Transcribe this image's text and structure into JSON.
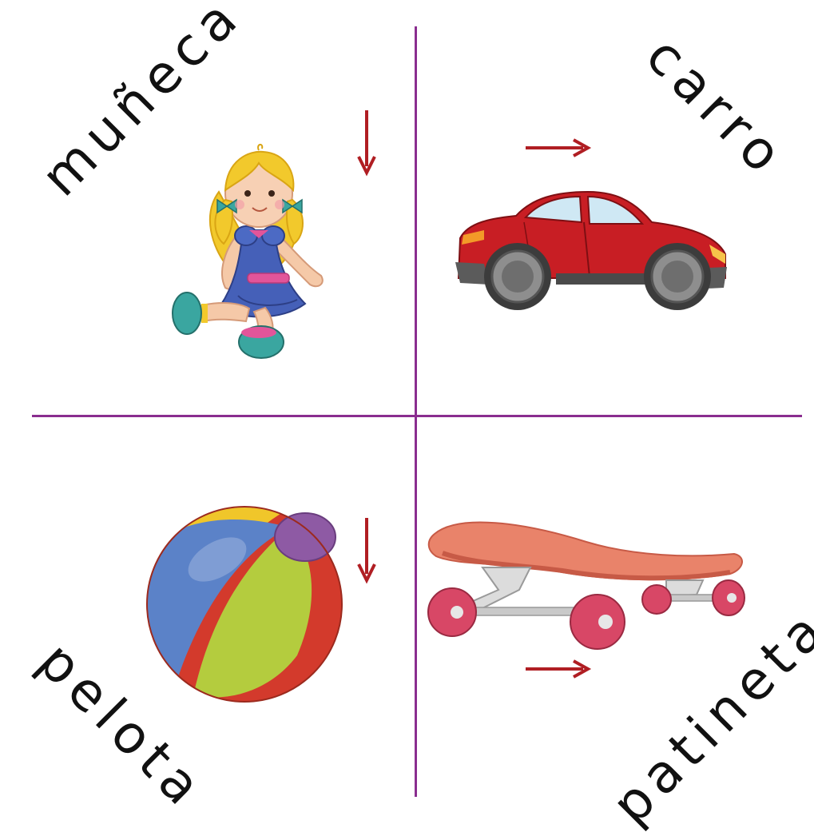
{
  "labels": {
    "top_left": "muñeca",
    "top_right": "carro",
    "bottom_left": "pelota",
    "bottom_right": "patineta"
  },
  "illustrations": {
    "top_left": "doll",
    "top_right": "car",
    "bottom_left": "beach-ball",
    "bottom_right": "skateboard"
  },
  "arrows": {
    "top_left": "down",
    "top_right": "right",
    "bottom_left": "down",
    "bottom_right": "right"
  },
  "colors": {
    "divider": "#8a2d8f",
    "arrow": "#b01e23",
    "text": "#111111"
  }
}
